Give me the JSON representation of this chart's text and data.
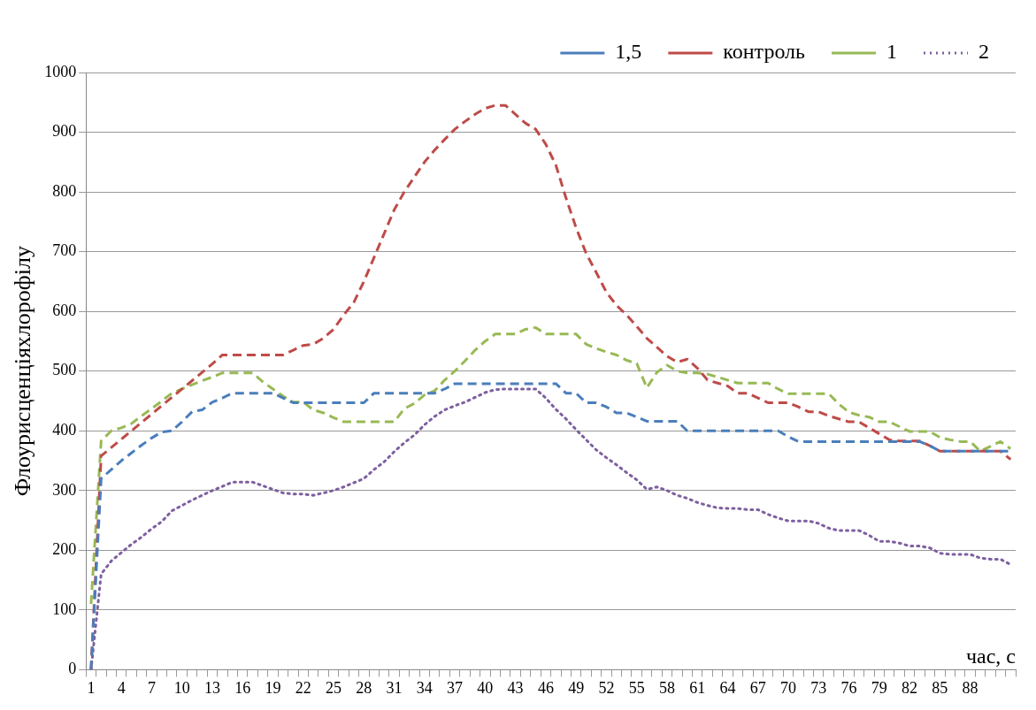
{
  "chart_data": {
    "type": "line",
    "xlabel": "час, с",
    "ylabel": "Флоурисценціяхлорофілу",
    "categories": [
      "1",
      null,
      null,
      "4",
      null,
      null,
      "7",
      null,
      null,
      "10",
      null,
      null,
      "13",
      null,
      null,
      "16",
      null,
      null,
      "19",
      null,
      null,
      "22",
      null,
      null,
      "25",
      null,
      null,
      "28",
      null,
      null,
      "31",
      null,
      null,
      "34",
      null,
      null,
      "37",
      null,
      null,
      "40",
      null,
      null,
      "43",
      null,
      null,
      "46",
      null,
      null,
      "49",
      null,
      null,
      "52",
      null,
      null,
      "55",
      null,
      null,
      "58",
      null,
      null,
      "61",
      null,
      null,
      "64",
      null,
      null,
      "67",
      null,
      null,
      "70",
      null,
      null,
      "73",
      null,
      null,
      "76",
      null,
      null,
      "79",
      null,
      null,
      "82",
      null,
      null,
      "85",
      null,
      null,
      "88",
      null,
      null,
      null,
      null
    ],
    "series": [
      {
        "name": "1,5",
        "color": "#4a7ebb",
        "line_style": "dashed",
        "values": [
          0,
          320,
          335,
          350,
          363,
          376,
          388,
          398,
          400,
          415,
          432,
          435,
          448,
          455,
          463,
          463,
          463,
          463,
          463,
          455,
          447,
          447,
          447,
          447,
          447,
          447,
          447,
          447,
          463,
          463,
          463,
          463,
          463,
          463,
          463,
          470,
          479,
          479,
          479,
          479,
          479,
          479,
          479,
          479,
          479,
          479,
          479,
          463,
          463,
          447,
          447,
          440,
          430,
          430,
          423,
          416,
          416,
          416,
          416,
          400,
          400,
          400,
          400,
          400,
          400,
          400,
          400,
          400,
          400,
          390,
          382,
          382,
          382,
          382,
          382,
          382,
          382,
          382,
          382,
          382,
          382,
          382,
          382,
          375,
          366,
          366,
          366,
          366,
          366,
          366,
          366,
          366
        ]
      },
      {
        "name": "контроль",
        "color": "#be4b48",
        "line_style": "dashed",
        "values": [
          0,
          358,
          372,
          386,
          400,
          414,
          428,
          442,
          456,
          470,
          484,
          498,
          512,
          527,
          527,
          527,
          527,
          527,
          527,
          527,
          535,
          543,
          545,
          555,
          570,
          594,
          615,
          650,
          690,
          730,
          770,
          800,
          825,
          850,
          870,
          888,
          905,
          918,
          930,
          940,
          945,
          945,
          930,
          915,
          905,
          880,
          845,
          790,
          740,
          697,
          665,
          632,
          610,
          594,
          575,
          555,
          540,
          525,
          515,
          520,
          505,
          485,
          480,
          475,
          463,
          463,
          455,
          447,
          447,
          447,
          440,
          432,
          432,
          425,
          420,
          415,
          415,
          405,
          395,
          385,
          383,
          383,
          383,
          375,
          366,
          366,
          366,
          366,
          366,
          366,
          366,
          352
        ]
      },
      {
        "name": "1",
        "color": "#98b954",
        "line_style": "dashed",
        "values": [
          110,
          383,
          400,
          405,
          412,
          425,
          437,
          450,
          463,
          470,
          477,
          484,
          490,
          497,
          497,
          497,
          497,
          482,
          470,
          458,
          448,
          448,
          435,
          430,
          422,
          415,
          415,
          415,
          415,
          415,
          415,
          437,
          446,
          460,
          467,
          485,
          500,
          517,
          535,
          550,
          562,
          562,
          562,
          570,
          573,
          562,
          562,
          562,
          562,
          545,
          538,
          532,
          527,
          518,
          513,
          472,
          498,
          510,
          500,
          497,
          497,
          495,
          490,
          485,
          480,
          480,
          480,
          480,
          470,
          462,
          462,
          462,
          462,
          462,
          445,
          431,
          426,
          423,
          415,
          415,
          407,
          399,
          399,
          399,
          389,
          385,
          382,
          382,
          366,
          374,
          382,
          370
        ]
      },
      {
        "name": "2",
        "color": "#7d60a0",
        "line_style": "dotted",
        "values": [
          0,
          160,
          182,
          196,
          210,
          222,
          236,
          248,
          266,
          275,
          284,
          292,
          300,
          307,
          314,
          314,
          314,
          308,
          302,
          296,
          294,
          294,
          292,
          296,
          300,
          306,
          313,
          320,
          335,
          348,
          365,
          380,
          393,
          410,
          424,
          435,
          442,
          448,
          456,
          464,
          469,
          470,
          470,
          470,
          470,
          455,
          436,
          420,
          402,
          385,
          368,
          355,
          343,
          330,
          318,
          302,
          306,
          300,
          292,
          287,
          280,
          275,
          271,
          270,
          270,
          268,
          268,
          260,
          254,
          249,
          249,
          249,
          245,
          237,
          233,
          233,
          233,
          225,
          215,
          215,
          212,
          207,
          207,
          204,
          195,
          193,
          193,
          193,
          187,
          185,
          185,
          176
        ]
      }
    ],
    "ylim": [
      0,
      1000
    ],
    "yticks": [
      0,
      100,
      200,
      300,
      400,
      500,
      600,
      700,
      800,
      900,
      1000
    ],
    "grid": "y",
    "legend": "top right",
    "marker": "none"
  }
}
